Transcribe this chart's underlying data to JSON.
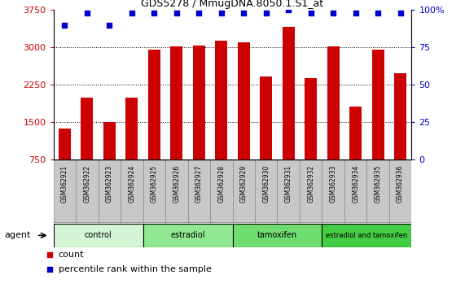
{
  "title": "GDS5278 / MmugDNA.8050.1.S1_at",
  "samples": [
    "GSM362921",
    "GSM362922",
    "GSM362923",
    "GSM362924",
    "GSM362925",
    "GSM362926",
    "GSM362927",
    "GSM362928",
    "GSM362929",
    "GSM362930",
    "GSM362931",
    "GSM362932",
    "GSM362933",
    "GSM362934",
    "GSM362935",
    "GSM362936"
  ],
  "counts": [
    1380,
    2000,
    1510,
    2000,
    2960,
    3020,
    3040,
    3130,
    3110,
    2420,
    3420,
    2390,
    3020,
    1820,
    2960,
    2490
  ],
  "percentiles": [
    90,
    98,
    90,
    98,
    98,
    98,
    98,
    98,
    98,
    98,
    100,
    98,
    98,
    98,
    98,
    98
  ],
  "bar_color": "#cc0000",
  "dot_color": "#0000cc",
  "ylim_left": [
    750,
    3750
  ],
  "ylim_right": [
    0,
    100
  ],
  "yticks_left": [
    750,
    1500,
    2250,
    3000,
    3750
  ],
  "yticks_right": [
    0,
    25,
    50,
    75,
    100
  ],
  "groups": [
    {
      "label": "control",
      "start": 0,
      "end": 4,
      "color": "#d4f5d4"
    },
    {
      "label": "estradiol",
      "start": 4,
      "end": 8,
      "color": "#90e890"
    },
    {
      "label": "tamoxifen",
      "start": 8,
      "end": 12,
      "color": "#70dd70"
    },
    {
      "label": "estradiol and tamoxifen",
      "start": 12,
      "end": 16,
      "color": "#44cc44"
    }
  ],
  "agent_label": "agent",
  "legend_count_label": "count",
  "legend_pct_label": "percentile rank within the sample",
  "background_color": "#ffffff",
  "plot_bg_color": "#ffffff",
  "grid_color": "#000000",
  "tick_label_color_left": "#cc0000",
  "tick_label_color_right": "#0000cc",
  "sample_box_color": "#c8c8c8",
  "sample_border_color": "#888888"
}
